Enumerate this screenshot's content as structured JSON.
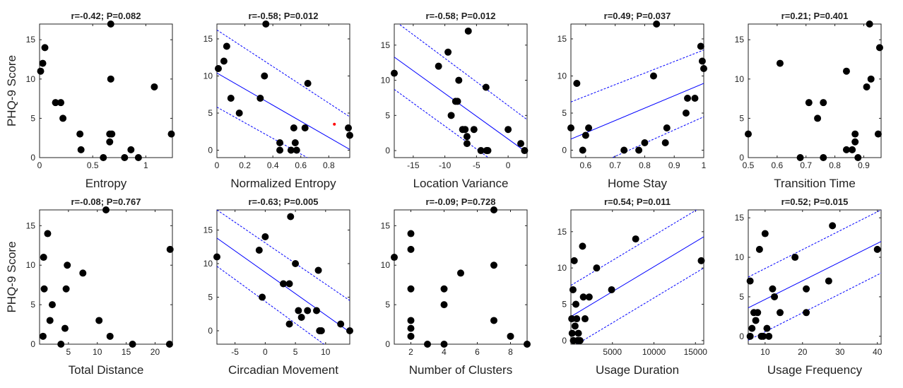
{
  "colors": {
    "point": "#000000",
    "fit": "#0000ff",
    "highlight": "#ff0000",
    "axis": "#222222"
  },
  "ylabel": "PHQ-9 Score",
  "chart_data": [
    {
      "type": "scatter",
      "title": "r=-0.42; P=0.082",
      "xlabel": "Entropy",
      "xlim": [
        0,
        1.25
      ],
      "ylim": [
        0,
        17
      ],
      "xticks": [
        0,
        0.5,
        1
      ],
      "xtick_labels": [
        "0",
        "0.5",
        "1"
      ],
      "yticks": [
        0,
        5,
        10,
        15
      ],
      "ytick_labels": [
        "0",
        "5",
        "10",
        "15"
      ],
      "x": [
        0.01,
        0.03,
        0.05,
        0.15,
        0.2,
        0.22,
        0.38,
        0.39,
        0.6,
        0.66,
        0.66,
        0.67,
        0.67,
        0.68,
        0.8,
        0.86,
        0.93,
        1.08,
        1.24
      ],
      "y": [
        11,
        12,
        14,
        7,
        7,
        5,
        3,
        1,
        0,
        3,
        2,
        10,
        17,
        3,
        0,
        1,
        0,
        9,
        3
      ],
      "fit": null
    },
    {
      "type": "scatter",
      "title": "r=-0.58; P=0.012",
      "xlabel": "Normalized Entropy",
      "xlim": [
        0,
        0.95
      ],
      "ylim": [
        -1,
        17
      ],
      "xticks": [
        0,
        0.2,
        0.4,
        0.6,
        0.8
      ],
      "xtick_labels": [
        "0",
        "0.2",
        "0.4",
        "0.6",
        "0.8"
      ],
      "yticks": [
        0,
        5,
        10,
        15
      ],
      "ytick_labels": [
        "0",
        "5",
        "10",
        "15"
      ],
      "x": [
        0.01,
        0.05,
        0.07,
        0.1,
        0.16,
        0.31,
        0.34,
        0.35,
        0.45,
        0.45,
        0.53,
        0.55,
        0.56,
        0.57,
        0.63,
        0.65,
        0.94,
        0.95
      ],
      "y": [
        11,
        12,
        14,
        7,
        5,
        7,
        10,
        17,
        1,
        0,
        0,
        3,
        1,
        0,
        3,
        9,
        3,
        2
      ],
      "highlight": {
        "x": 0.84,
        "y": 3.5
      },
      "fit": {
        "x": [
          0,
          0.95
        ],
        "y": [
          10.4,
          0.1
        ],
        "ci_upper": [
          16.2,
          4.5
        ],
        "ci_lower": [
          5.8,
          -4.2
        ]
      }
    },
    {
      "type": "scatter",
      "title": "r=-0.58; P=0.012",
      "xlabel": "Location Variance",
      "xlim": [
        -18,
        3
      ],
      "ylim": [
        -1,
        18
      ],
      "xticks": [
        -15,
        -10,
        -5,
        0
      ],
      "xtick_labels": [
        "-15",
        "-10",
        "-5",
        "0"
      ],
      "yticks": [
        0,
        5,
        10,
        15
      ],
      "ytick_labels": [
        "0",
        "5",
        "10",
        "15"
      ],
      "x": [
        -18,
        -11,
        -9.5,
        -9,
        -8.3,
        -8,
        -7.8,
        -7.2,
        -6.5,
        -6.8,
        -6.5,
        -6.3,
        -5.4,
        -4.3,
        -3.5,
        -3.2,
        -3.4,
        0,
        2,
        2.6
      ],
      "y": [
        11,
        12,
        14,
        5,
        7,
        7,
        10,
        3,
        2,
        3,
        1,
        17,
        3,
        0,
        9,
        0,
        0,
        3,
        1,
        0
      ],
      "fit": {
        "x": [
          -18,
          3
        ],
        "y": [
          13.3,
          -0.3
        ],
        "ci_upper": [
          18.5,
          4.4
        ],
        "ci_lower": [
          8.7,
          -5.0
        ]
      }
    },
    {
      "type": "scatter",
      "title": "r=0.49; P=0.037",
      "xlabel": "Home Stay",
      "xlim": [
        0.55,
        1.0
      ],
      "ylim": [
        -1,
        17
      ],
      "xticks": [
        0.6,
        0.7,
        0.8,
        0.9,
        1
      ],
      "xtick_labels": [
        "0.6",
        "0.7",
        "0.8",
        "0.9",
        "1"
      ],
      "yticks": [
        0,
        5,
        10,
        15
      ],
      "ytick_labels": [
        "0",
        "5",
        "10",
        "15"
      ],
      "x": [
        0.55,
        0.57,
        0.59,
        0.6,
        0.61,
        0.73,
        0.78,
        0.8,
        0.83,
        0.84,
        0.87,
        0.875,
        0.94,
        0.945,
        0.97,
        0.99,
        0.995,
        1.0
      ],
      "y": [
        3,
        9,
        0,
        2,
        3,
        0,
        0,
        1,
        10,
        17,
        1,
        3,
        5,
        7,
        7,
        14,
        12,
        11
      ],
      "fit": {
        "x": [
          0.55,
          1.0
        ],
        "y": [
          1.5,
          9.0
        ],
        "ci_upper": [
          6.5,
          13.5
        ],
        "ci_lower": [
          -3.5,
          4.5
        ]
      }
    },
    {
      "type": "scatter",
      "title": "r=0.21; P=0.401",
      "xlabel": "Transition Time",
      "xlim": [
        0.5,
        0.96
      ],
      "ylim": [
        0,
        17
      ],
      "xticks": [
        0.5,
        0.6,
        0.7,
        0.8,
        0.9
      ],
      "xtick_labels": [
        "0.5",
        "0.6",
        "0.7",
        "0.8",
        "0.9"
      ],
      "yticks": [
        0,
        5,
        10,
        15
      ],
      "ytick_labels": [
        "0",
        "5",
        "10",
        "15"
      ],
      "x": [
        0.5,
        0.61,
        0.68,
        0.71,
        0.74,
        0.76,
        0.76,
        0.84,
        0.84,
        0.86,
        0.87,
        0.87,
        0.88,
        0.91,
        0.92,
        0.925,
        0.95,
        0.955
      ],
      "y": [
        3,
        12,
        0,
        7,
        5,
        7,
        0,
        11,
        1,
        1,
        2,
        3,
        0,
        9,
        17,
        10,
        3,
        14
      ],
      "fit": null
    },
    {
      "type": "scatter",
      "title": "r=-0.08; P=0.767",
      "xlabel": "Total Distance",
      "xlim": [
        0,
        23
      ],
      "ylim": [
        0,
        17
      ],
      "xticks": [
        5,
        10,
        15,
        20
      ],
      "xtick_labels": [
        "5",
        "10",
        "15",
        "20"
      ],
      "yticks": [
        0,
        5,
        10,
        15
      ],
      "ytick_labels": [
        "0",
        "5",
        "10",
        "15"
      ],
      "x": [
        0.6,
        0.7,
        0.8,
        1.4,
        1.8,
        2.2,
        3.7,
        4.4,
        4.6,
        4.8,
        7.5,
        10.3,
        11.5,
        12.2,
        16.1,
        22.5,
        22.6
      ],
      "y": [
        1,
        11,
        7,
        14,
        3,
        5,
        0,
        2,
        7,
        10,
        9,
        3,
        17,
        1,
        0,
        0,
        12
      ],
      "fit": null
    },
    {
      "type": "scatter",
      "title": "r=-0.63; P=0.005",
      "xlabel": "Circadian Movement",
      "xlim": [
        -8,
        14
      ],
      "ylim": [
        -2,
        18
      ],
      "xticks": [
        -5,
        0,
        5,
        10
      ],
      "xtick_labels": [
        "-5",
        "0",
        "5",
        "10"
      ],
      "yticks": [
        0,
        5,
        10,
        15
      ],
      "ytick_labels": [
        "0",
        "5",
        "10",
        "15"
      ],
      "x": [
        -8,
        -1,
        -0.5,
        0,
        3,
        4,
        4,
        4.2,
        5,
        5.5,
        6,
        7,
        8.5,
        8.8,
        9,
        9.3,
        12.5,
        14
      ],
      "y": [
        11,
        12,
        5,
        14,
        7,
        1,
        7,
        17,
        10,
        3,
        2,
        3,
        3,
        9,
        0,
        0,
        1,
        0
      ],
      "fit": {
        "x": [
          -8,
          14
        ],
        "y": [
          13.8,
          -0.2
        ],
        "ci_upper": [
          18.0,
          4.5
        ],
        "ci_lower": [
          9.6,
          -4.8
        ]
      }
    },
    {
      "type": "scatter",
      "title": "r=-0.09; P=0.728",
      "xlabel": "Number of Clusters",
      "xlim": [
        1,
        9
      ],
      "ylim": [
        0,
        17
      ],
      "xticks": [
        2,
        4,
        6,
        8
      ],
      "xtick_labels": [
        "2",
        "4",
        "6",
        "8"
      ],
      "yticks": [
        0,
        5,
        10,
        15
      ],
      "ytick_labels": [
        "0",
        "5",
        "10",
        "15"
      ],
      "x": [
        1,
        2,
        2,
        2,
        2,
        2,
        2,
        3,
        4,
        4,
        4,
        5,
        7,
        7,
        7,
        8,
        9
      ],
      "y": [
        11,
        14,
        12,
        7,
        3,
        2,
        1,
        0,
        7,
        5,
        0,
        9,
        17,
        10,
        3,
        1,
        0
      ],
      "fit": null
    },
    {
      "type": "scatter",
      "title": "r=0.54; P=0.011",
      "xlabel": "Usage Duration",
      "xlim": [
        0,
        16000
      ],
      "ylim": [
        -0.5,
        18
      ],
      "xticks": [
        5000,
        10000,
        15000
      ],
      "xtick_labels": [
        "5000",
        "10000",
        "15000"
      ],
      "yticks": [
        0,
        5,
        10,
        15
      ],
      "ytick_labels": [
        "0",
        "5",
        "10",
        "15"
      ],
      "x": [
        100,
        150,
        250,
        300,
        400,
        500,
        600,
        700,
        800,
        900,
        1100,
        1400,
        1500,
        1700,
        2200,
        3100,
        4900,
        7800,
        15700
      ],
      "y": [
        3,
        1,
        7,
        0,
        11,
        2,
        5,
        3,
        0,
        1,
        0,
        13,
        6,
        3,
        6,
        10,
        7,
        14,
        11
      ],
      "fit": {
        "x": [
          0,
          16000
        ],
        "y": [
          3.3,
          14.3
        ],
        "ci_upper": [
          7.6,
          18.6
        ],
        "ci_lower": [
          -1.0,
          10.0
        ]
      }
    },
    {
      "type": "scatter",
      "title": "r=0.52; P=0.015",
      "xlabel": "Usage Frequency",
      "xlim": [
        5.5,
        41
      ],
      "ylim": [
        -1,
        16
      ],
      "xticks": [
        10,
        20,
        30,
        40
      ],
      "xtick_labels": [
        "10",
        "20",
        "30",
        "40"
      ],
      "yticks": [
        0,
        5,
        10,
        15
      ],
      "ytick_labels": [
        "0",
        "5",
        "10",
        "15"
      ],
      "x": [
        6,
        6,
        6.5,
        7,
        7.5,
        8,
        8.5,
        9,
        9.5,
        10,
        10.5,
        11,
        12,
        12.5,
        14,
        18,
        21,
        21,
        27,
        28,
        40
      ],
      "y": [
        0,
        7,
        1,
        3,
        2,
        3,
        11,
        0,
        0,
        13,
        1,
        0,
        6,
        5,
        3,
        10,
        3,
        6,
        7,
        14,
        11
      ],
      "fit": {
        "x": [
          5.5,
          41
        ],
        "y": [
          3.6,
          12.0
        ],
        "ci_upper": [
          7.5,
          16.0
        ],
        "ci_lower": [
          -0.5,
          8.0
        ]
      }
    }
  ]
}
